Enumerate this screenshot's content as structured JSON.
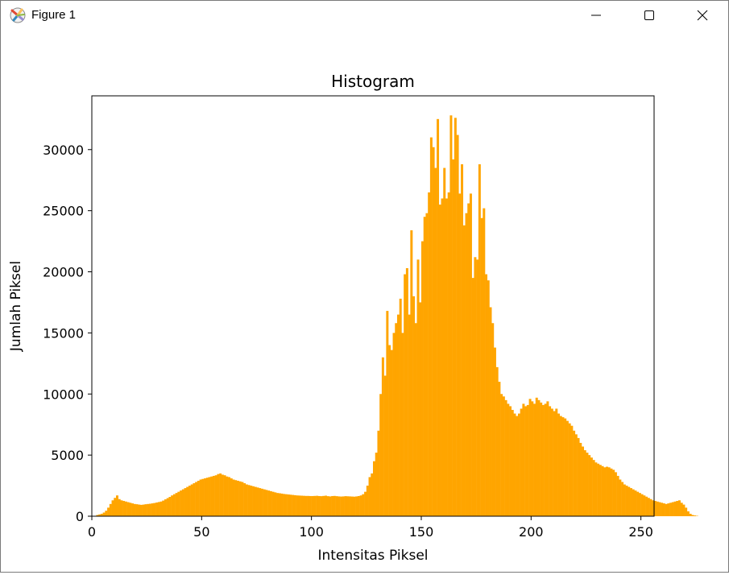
{
  "window": {
    "title": "Figure 1",
    "icon": "matplotlib-icon",
    "controls": [
      "minimize-icon",
      "maximize-icon",
      "close-icon"
    ]
  },
  "chart_data": {
    "type": "bar",
    "title": "Histogram",
    "xlabel": "Intensitas Piksel",
    "ylabel": "Jumlah Piksel",
    "bar_color": "#ffa500",
    "xlim": [
      0,
      256
    ],
    "ylim": [
      0,
      34400
    ],
    "xticks": [
      0,
      50,
      100,
      150,
      200,
      250
    ],
    "yticks": [
      0,
      5000,
      10000,
      15000,
      20000,
      25000,
      30000
    ],
    "x_start": 0,
    "bin_width": 1,
    "values": [
      0,
      0,
      100,
      150,
      200,
      300,
      450,
      700,
      1000,
      1300,
      1500,
      1700,
      1400,
      1300,
      1250,
      1200,
      1150,
      1100,
      1050,
      1000,
      980,
      950,
      930,
      950,
      980,
      1000,
      1020,
      1050,
      1080,
      1120,
      1160,
      1200,
      1280,
      1380,
      1480,
      1580,
      1700,
      1800,
      1900,
      2000,
      2100,
      2200,
      2300,
      2400,
      2500,
      2600,
      2700,
      2800,
      2900,
      3000,
      3050,
      3100,
      3150,
      3200,
      3250,
      3300,
      3350,
      3450,
      3500,
      3400,
      3350,
      3250,
      3200,
      3100,
      3000,
      2950,
      2900,
      2850,
      2800,
      2700,
      2600,
      2550,
      2500,
      2450,
      2400,
      2350,
      2300,
      2250,
      2200,
      2150,
      2100,
      2050,
      2000,
      1950,
      1900,
      1880,
      1850,
      1820,
      1800,
      1780,
      1760,
      1740,
      1720,
      1700,
      1690,
      1680,
      1670,
      1660,
      1660,
      1650,
      1650,
      1660,
      1670,
      1650,
      1640,
      1660,
      1680,
      1640,
      1620,
      1650,
      1660,
      1640,
      1620,
      1610,
      1620,
      1640,
      1630,
      1620,
      1610,
      1600,
      1620,
      1650,
      1700,
      1800,
      2000,
      2500,
      3200,
      3500,
      4500,
      5200,
      7000,
      10000,
      13000,
      11500,
      16800,
      14000,
      13600,
      15000,
      15800,
      16500,
      17800,
      15000,
      19800,
      20300,
      16500,
      23400,
      18000,
      15800,
      21000,
      17500,
      22500,
      24500,
      24800,
      26500,
      31000,
      30200,
      28500,
      32500,
      25500,
      26000,
      28500,
      26000,
      26500,
      32800,
      29200,
      32600,
      31200,
      26400,
      28800,
      23800,
      24800,
      25600,
      26400,
      19500,
      21200,
      21000,
      28800,
      24400,
      25200,
      19800,
      19300,
      17100,
      15800,
      13800,
      12200,
      11000,
      10000,
      9800,
      9500,
      9200,
      9000,
      8700,
      8400,
      8200,
      8400,
      8800,
      9200,
      9000,
      9100,
      9600,
      9400,
      9200,
      9700,
      9500,
      9300,
      9100,
      9200,
      9400,
      9000,
      8800,
      8600,
      8800,
      8400,
      8200,
      8100,
      8000,
      7800,
      7600,
      7400,
      7000,
      6700,
      6400,
      6000,
      5700,
      5400,
      5200,
      5000,
      4800,
      4600,
      4400,
      4300,
      4200,
      4100,
      4000,
      4050,
      4000,
      3900,
      3800,
      3600,
      3300,
      3000,
      2800,
      2600,
      2500,
      2400,
      2300,
      2200,
      2100,
      2000,
      1900,
      1800,
      1700,
      1600,
      1500,
      1400,
      1300,
      1250,
      1200,
      1150,
      1100,
      1050,
      1000,
      1050,
      1100,
      1150,
      1200,
      1250,
      1300,
      1100,
      950,
      700,
      400,
      200,
      100,
      60,
      30
    ]
  }
}
